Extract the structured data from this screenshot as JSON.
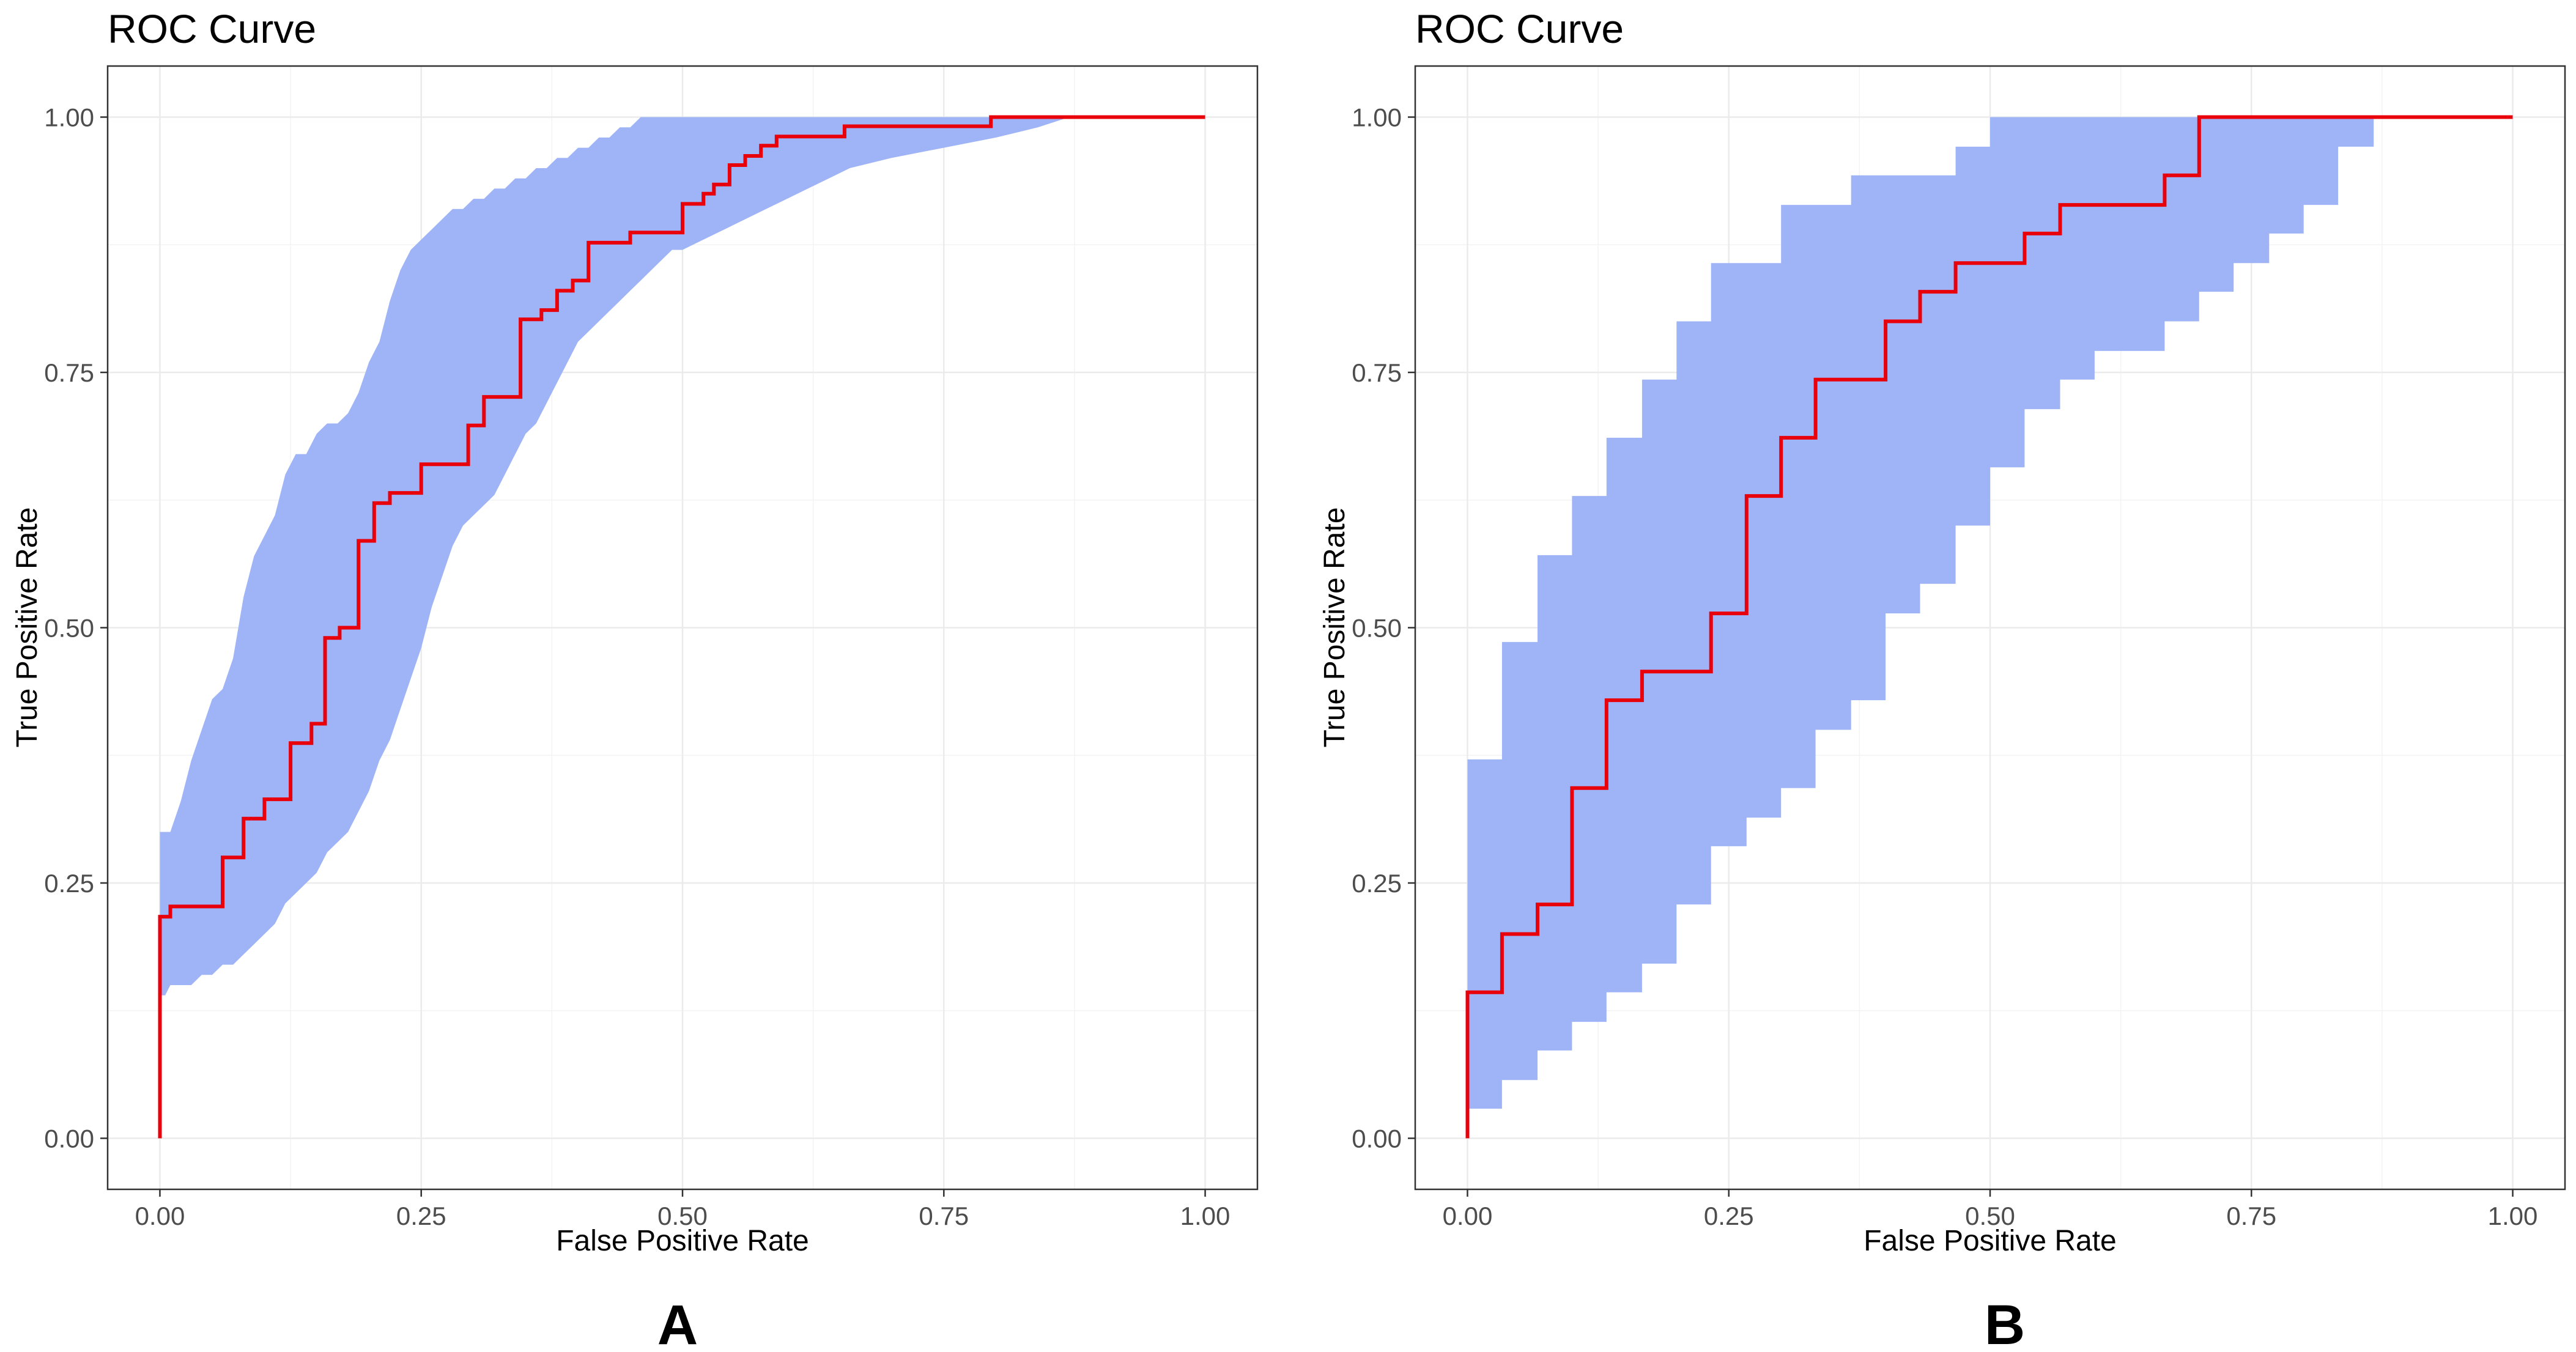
{
  "colors": {
    "band": "#9fb4f7",
    "roc": "#e8000b",
    "grid": "#ebebeb",
    "frame": "#333333"
  },
  "chart_data": [
    {
      "type": "line",
      "panel_label": "A",
      "title": "ROC Curve",
      "xlabel": "False Positive Rate",
      "ylabel": "True Positive Rate",
      "xlim": [
        -0.05,
        1.05
      ],
      "ylim": [
        -0.05,
        1.05
      ],
      "xticks": [
        0,
        0.25,
        0.5,
        0.75,
        1
      ],
      "yticks": [
        0,
        0.25,
        0.5,
        0.75,
        1
      ],
      "xtick_labels": [
        "0.00",
        "0.25",
        "0.50",
        "0.75",
        "1.00"
      ],
      "ytick_labels": [
        "0.00",
        "0.25",
        "0.50",
        "0.75",
        "1.00"
      ],
      "grid": true,
      "series": [
        {
          "name": "ROC",
          "type": "step",
          "x": [
            0,
            0,
            0.01,
            0.01,
            0.06,
            0.06,
            0.08,
            0.08,
            0.1,
            0.1,
            0.125,
            0.125,
            0.145,
            0.145,
            0.158,
            0.158,
            0.172,
            0.172,
            0.19,
            0.19,
            0.205,
            0.205,
            0.22,
            0.22,
            0.25,
            0.25,
            0.295,
            0.295,
            0.31,
            0.31,
            0.345,
            0.345,
            0.365,
            0.365,
            0.38,
            0.38,
            0.395,
            0.395,
            0.41,
            0.41,
            0.45,
            0.45,
            0.5,
            0.5,
            0.52,
            0.52,
            0.53,
            0.53,
            0.545,
            0.545,
            0.56,
            0.56,
            0.575,
            0.575,
            0.59,
            0.59,
            0.655,
            0.655,
            0.795,
            0.795,
            1
          ],
          "y": [
            0,
            0.217,
            0.217,
            0.227,
            0.227,
            0.275,
            0.275,
            0.313,
            0.313,
            0.332,
            0.332,
            0.387,
            0.387,
            0.406,
            0.406,
            0.49,
            0.49,
            0.5,
            0.5,
            0.585,
            0.585,
            0.622,
            0.622,
            0.632,
            0.632,
            0.66,
            0.66,
            0.698,
            0.698,
            0.726,
            0.726,
            0.802,
            0.802,
            0.811,
            0.811,
            0.83,
            0.83,
            0.84,
            0.84,
            0.877,
            0.877,
            0.887,
            0.887,
            0.915,
            0.915,
            0.925,
            0.925,
            0.934,
            0.934,
            0.953,
            0.953,
            0.962,
            0.962,
            0.972,
            0.972,
            0.981,
            0.981,
            0.991,
            0.991,
            1.0,
            1.0
          ]
        },
        {
          "name": "Confidence band",
          "type": "area",
          "fpr": [
            0,
            0.005,
            0.01,
            0.02,
            0.03,
            0.04,
            0.05,
            0.06,
            0.07,
            0.08,
            0.09,
            0.1,
            0.11,
            0.12,
            0.13,
            0.14,
            0.15,
            0.16,
            0.17,
            0.18,
            0.19,
            0.2,
            0.21,
            0.22,
            0.23,
            0.24,
            0.25,
            0.26,
            0.27,
            0.28,
            0.29,
            0.3,
            0.31,
            0.32,
            0.33,
            0.34,
            0.35,
            0.36,
            0.37,
            0.38,
            0.39,
            0.4,
            0.41,
            0.42,
            0.43,
            0.44,
            0.45,
            0.46,
            0.47,
            0.48,
            0.49,
            0.5,
            0.52,
            0.54,
            0.56,
            0.58,
            0.6,
            0.62,
            0.64,
            0.66,
            0.7,
            0.75,
            0.8,
            0.84,
            0.87,
            0.9,
            1.0
          ],
          "upper": [
            0.3,
            0.3,
            0.3,
            0.33,
            0.37,
            0.4,
            0.43,
            0.44,
            0.47,
            0.53,
            0.57,
            0.59,
            0.61,
            0.65,
            0.67,
            0.67,
            0.69,
            0.7,
            0.7,
            0.71,
            0.73,
            0.76,
            0.78,
            0.82,
            0.85,
            0.87,
            0.88,
            0.89,
            0.9,
            0.91,
            0.91,
            0.92,
            0.92,
            0.93,
            0.93,
            0.94,
            0.94,
            0.95,
            0.95,
            0.96,
            0.96,
            0.97,
            0.97,
            0.98,
            0.98,
            0.99,
            0.99,
            1.0,
            1.0,
            1.0,
            1.0,
            1.0,
            1.0,
            1.0,
            1.0,
            1.0,
            1.0,
            1.0,
            1.0,
            1.0,
            1.0,
            1.0,
            1.0,
            1.0,
            1.0,
            1.0,
            1.0
          ],
          "lower": [
            0.14,
            0.14,
            0.15,
            0.15,
            0.15,
            0.16,
            0.16,
            0.17,
            0.17,
            0.18,
            0.19,
            0.2,
            0.21,
            0.23,
            0.24,
            0.25,
            0.26,
            0.28,
            0.29,
            0.3,
            0.32,
            0.34,
            0.37,
            0.39,
            0.42,
            0.45,
            0.48,
            0.52,
            0.55,
            0.58,
            0.6,
            0.61,
            0.62,
            0.63,
            0.65,
            0.67,
            0.69,
            0.7,
            0.72,
            0.74,
            0.76,
            0.78,
            0.79,
            0.8,
            0.81,
            0.82,
            0.83,
            0.84,
            0.85,
            0.86,
            0.87,
            0.87,
            0.88,
            0.89,
            0.9,
            0.91,
            0.92,
            0.93,
            0.94,
            0.95,
            0.96,
            0.97,
            0.98,
            0.99,
            1.0,
            1.0,
            1.0
          ]
        }
      ]
    },
    {
      "type": "line",
      "panel_label": "B",
      "title": "ROC Curve",
      "xlabel": "False Positive Rate",
      "ylabel": "True Positive Rate",
      "xlim": [
        -0.05,
        1.05
      ],
      "ylim": [
        -0.05,
        1.05
      ],
      "xticks": [
        0,
        0.25,
        0.5,
        0.75,
        1
      ],
      "yticks": [
        0,
        0.25,
        0.5,
        0.75,
        1
      ],
      "xtick_labels": [
        "0.00",
        "0.25",
        "0.50",
        "0.75",
        "1.00"
      ],
      "ytick_labels": [
        "0.00",
        "0.25",
        "0.50",
        "0.75",
        "1.00"
      ],
      "grid": true,
      "series": [
        {
          "name": "ROC",
          "type": "step",
          "x": [
            0,
            0,
            0.033,
            0.033,
            0.067,
            0.067,
            0.1,
            0.1,
            0.133,
            0.133,
            0.167,
            0.167,
            0.233,
            0.233,
            0.267,
            0.267,
            0.3,
            0.3,
            0.333,
            0.333,
            0.4,
            0.4,
            0.433,
            0.433,
            0.467,
            0.467,
            0.533,
            0.533,
            0.567,
            0.567,
            0.667,
            0.667,
            0.7,
            0.7,
            1
          ],
          "y": [
            0,
            0.143,
            0.143,
            0.2,
            0.2,
            0.229,
            0.229,
            0.343,
            0.343,
            0.429,
            0.429,
            0.457,
            0.457,
            0.514,
            0.514,
            0.629,
            0.629,
            0.686,
            0.686,
            0.743,
            0.743,
            0.8,
            0.8,
            0.829,
            0.829,
            0.857,
            0.857,
            0.886,
            0.886,
            0.914,
            0.914,
            0.943,
            0.943,
            1.0,
            1.0
          ]
        },
        {
          "name": "Confidence band",
          "type": "area",
          "upper_steps": [
            [
              0,
              0.371
            ],
            [
              0.033,
              0.486
            ],
            [
              0.067,
              0.571
            ],
            [
              0.1,
              0.629
            ],
            [
              0.133,
              0.686
            ],
            [
              0.167,
              0.743
            ],
            [
              0.2,
              0.8
            ],
            [
              0.233,
              0.857
            ],
            [
              0.3,
              0.914
            ],
            [
              0.367,
              0.943
            ],
            [
              0.467,
              0.971
            ],
            [
              0.5,
              1.0
            ],
            [
              1.0,
              1.0
            ]
          ],
          "lower_steps": [
            [
              0,
              0.029
            ],
            [
              0.033,
              0.057
            ],
            [
              0.067,
              0.086
            ],
            [
              0.1,
              0.114
            ],
            [
              0.133,
              0.143
            ],
            [
              0.167,
              0.171
            ],
            [
              0.2,
              0.229
            ],
            [
              0.233,
              0.286
            ],
            [
              0.267,
              0.314
            ],
            [
              0.3,
              0.343
            ],
            [
              0.333,
              0.4
            ],
            [
              0.367,
              0.429
            ],
            [
              0.4,
              0.514
            ],
            [
              0.433,
              0.543
            ],
            [
              0.467,
              0.6
            ],
            [
              0.5,
              0.657
            ],
            [
              0.533,
              0.714
            ],
            [
              0.567,
              0.743
            ],
            [
              0.6,
              0.771
            ],
            [
              0.667,
              0.8
            ],
            [
              0.7,
              0.829
            ],
            [
              0.733,
              0.857
            ],
            [
              0.767,
              0.886
            ],
            [
              0.8,
              0.914
            ],
            [
              0.833,
              0.971
            ],
            [
              0.867,
              1.0
            ],
            [
              1.0,
              1.0
            ]
          ]
        }
      ]
    }
  ]
}
